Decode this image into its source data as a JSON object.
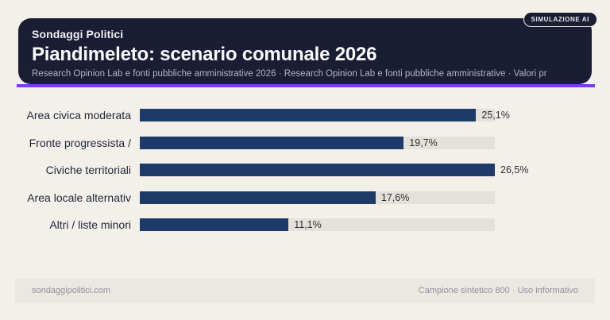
{
  "badge": {
    "label": "SIMULAZIONE AI"
  },
  "header": {
    "kicker": "Sondaggi Politici",
    "title": "Piandimeleto: scenario comunale 2026",
    "subtitle": "Research Opinion Lab e fonti pubbliche amministrative 2026 · Research Opinion Lab e fonti pubbliche amministrative · Valori pr"
  },
  "chart_data": {
    "type": "bar",
    "orientation": "horizontal",
    "title": "Piandimeleto: scenario comunale 2026",
    "categories": [
      "Area civica moderata",
      "Fronte progressista /",
      "Civiche territoriali",
      "Area locale alternativ",
      "Altri / liste minori"
    ],
    "values": [
      25.1,
      19.7,
      26.5,
      17.6,
      11.1
    ],
    "value_labels": [
      "25,1%",
      "19,7%",
      "26,5%",
      "17,6%",
      "11,1%"
    ],
    "unit": "%",
    "xlim": [
      0,
      26.5
    ],
    "grid": false,
    "legend": false
  },
  "footer": {
    "left": "sondaggipolitici.com",
    "right": "Campione sintetico 800 · Uso informativo"
  },
  "colors": {
    "page-bg": "#f3f0ea",
    "header-bg": "#1a1d33",
    "accent": "#7c3aed",
    "bar": "#1e3a69",
    "track": "#e4e1da",
    "footer-bg": "#ebe8e2"
  }
}
